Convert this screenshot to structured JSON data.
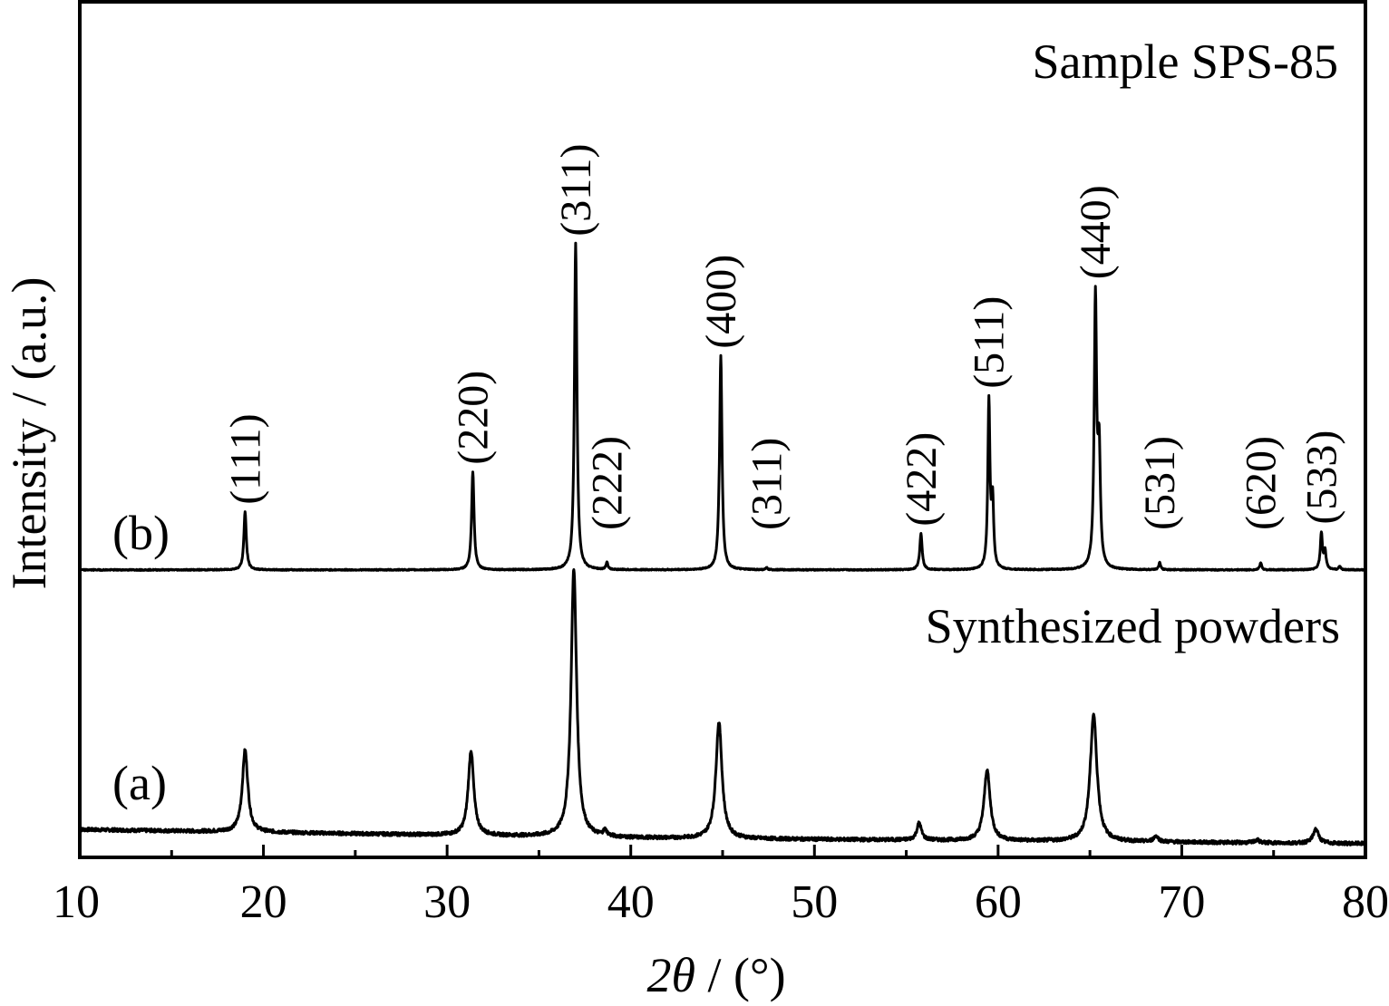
{
  "chart_data": {
    "type": "line",
    "title": "",
    "xlabel": "2θ / (°)",
    "xlabel_parts": {
      "var": "2θ",
      "unit": " / (°)"
    },
    "ylabel": "Intensity / (a.u.)",
    "xlim": [
      10,
      80
    ],
    "xticks": [
      10,
      20,
      30,
      40,
      50,
      60,
      70,
      80
    ],
    "xtick_labels": [
      "10",
      "20",
      "30",
      "40",
      "50",
      "60",
      "70",
      "80"
    ],
    "y_ticks_shown": false,
    "grid": false,
    "series": [
      {
        "name": "Synthesized powders",
        "tag": "(a)",
        "baseline": [
          {
            "x": 10,
            "y": 0.06
          },
          {
            "x": 20,
            "y": 0.05
          },
          {
            "x": 30,
            "y": 0.04
          },
          {
            "x": 40,
            "y": 0.03
          },
          {
            "x": 50,
            "y": 0.025
          },
          {
            "x": 60,
            "y": 0.02
          },
          {
            "x": 70,
            "y": 0.015
          },
          {
            "x": 80,
            "y": 0.01
          }
        ],
        "peaks": [
          {
            "x": 19.0,
            "y": 0.29,
            "w": 0.18
          },
          {
            "x": 31.3,
            "y": 0.3,
            "w": 0.18
          },
          {
            "x": 36.9,
            "y": 0.95,
            "w": 0.18
          },
          {
            "x": 38.6,
            "y": 0.02,
            "w": 0.12
          },
          {
            "x": 44.8,
            "y": 0.41,
            "w": 0.2
          },
          {
            "x": 55.7,
            "y": 0.06,
            "w": 0.15
          },
          {
            "x": 59.4,
            "y": 0.25,
            "w": 0.2
          },
          {
            "x": 65.2,
            "y": 0.45,
            "w": 0.22
          },
          {
            "x": 68.6,
            "y": 0.02,
            "w": 0.15
          },
          {
            "x": 74.1,
            "y": 0.01,
            "w": 0.15
          },
          {
            "x": 77.3,
            "y": 0.05,
            "w": 0.18
          }
        ]
      },
      {
        "name": "Sample SPS-85",
        "tag": "(b)",
        "baseline": [
          {
            "x": 10,
            "y": 0.003
          },
          {
            "x": 80,
            "y": 0.003
          }
        ],
        "peaks": [
          {
            "x": 19.0,
            "y": 0.16,
            "w": 0.08
          },
          {
            "x": 31.4,
            "y": 0.27,
            "w": 0.08
          },
          {
            "x": 37.0,
            "y": 0.9,
            "w": 0.08
          },
          {
            "x": 38.7,
            "y": 0.02,
            "w": 0.06
          },
          {
            "x": 44.9,
            "y": 0.59,
            "w": 0.08
          },
          {
            "x": 47.4,
            "y": 0.005,
            "w": 0.06
          },
          {
            "x": 55.8,
            "y": 0.1,
            "w": 0.08
          },
          {
            "x": 59.5,
            "y": 0.46,
            "w": 0.07
          },
          {
            "x": 59.7,
            "y": 0.18,
            "w": 0.07
          },
          {
            "x": 65.3,
            "y": 0.74,
            "w": 0.08
          },
          {
            "x": 65.5,
            "y": 0.3,
            "w": 0.08
          },
          {
            "x": 68.8,
            "y": 0.02,
            "w": 0.06
          },
          {
            "x": 74.3,
            "y": 0.02,
            "w": 0.06
          },
          {
            "x": 77.6,
            "y": 0.1,
            "w": 0.07
          },
          {
            "x": 77.8,
            "y": 0.05,
            "w": 0.07
          },
          {
            "x": 78.6,
            "y": 0.01,
            "w": 0.06
          }
        ]
      }
    ],
    "annotations": [
      {
        "text": "(111)",
        "x": 19.0,
        "series": 1
      },
      {
        "text": "(220)",
        "x": 31.4,
        "series": 1
      },
      {
        "text": "(311)",
        "x": 37.0,
        "series": 1
      },
      {
        "text": "(222)",
        "x": 38.7,
        "series": 1
      },
      {
        "text": "(400)",
        "x": 44.9,
        "series": 1
      },
      {
        "text": "(311)",
        "x": 47.4,
        "series": 1
      },
      {
        "text": "(422)",
        "x": 55.8,
        "series": 1
      },
      {
        "text": "(511)",
        "x": 59.5,
        "series": 1
      },
      {
        "text": "(440)",
        "x": 65.3,
        "series": 1
      },
      {
        "text": "(531)",
        "x": 68.8,
        "series": 1
      },
      {
        "text": "(620)",
        "x": 74.3,
        "series": 1
      },
      {
        "text": "(533)",
        "x": 77.6,
        "series": 1
      }
    ]
  }
}
